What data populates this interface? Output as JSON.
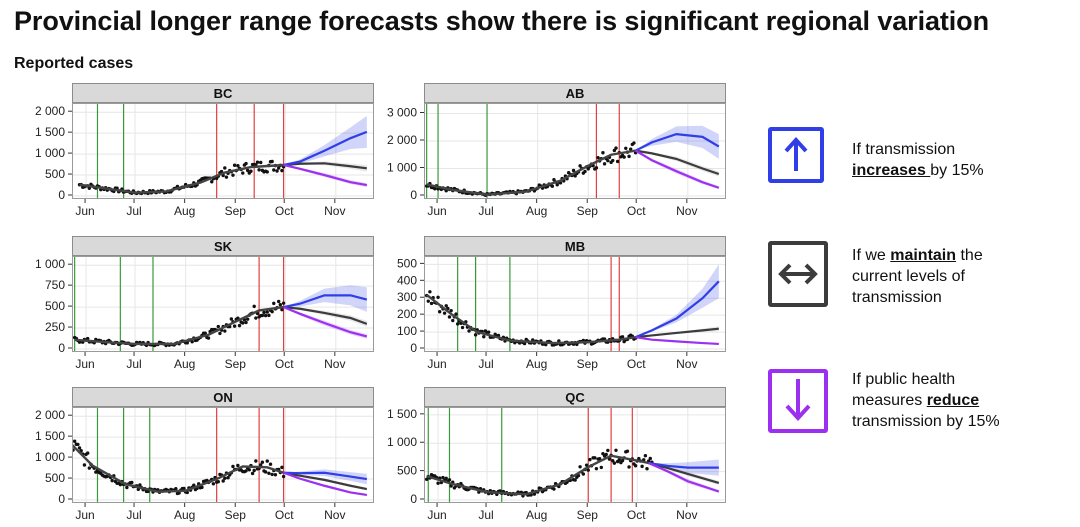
{
  "header": {
    "title": "Provincial longer range forecasts show there is significant regional variation",
    "subtitle": "Reported cases"
  },
  "colors": {
    "increase": "#2f3ee6",
    "maintain": "#3c3c3c",
    "reduce": "#9b30f0",
    "red_line": "#e04040",
    "green_line": "#3a9a3a",
    "strip_bg": "#d9d9d9"
  },
  "legend": {
    "increase": {
      "icon": "up-arrow-icon",
      "pre": "If transmission",
      "bold": "increases ",
      "post": "by 15%"
    },
    "maintain": {
      "icon": "left-right-arrow-icon",
      "pre": "If we ",
      "bold": "maintain",
      "post": " the",
      "line2": "current levels of",
      "line3": "transmission"
    },
    "reduce": {
      "icon": "down-arrow-icon",
      "line1": "If public health",
      "pre": "measures ",
      "bold": "reduce",
      "post": "transmission by 15%"
    }
  },
  "chart_data": [
    {
      "type": "line",
      "province": "BC",
      "x_ticks": [
        "Jun",
        "Jul",
        "Aug",
        "Sep",
        "Oct",
        "Nov"
      ],
      "y_ticks": [
        "0",
        "500",
        "1 000",
        "1 500",
        "2 000"
      ],
      "ylim": [
        0,
        2100
      ],
      "green_lines": [
        "2020-05-01",
        "2020-06-08",
        "2020-06-24"
      ],
      "red_lines": [
        "2020-08-20",
        "2020-09-12",
        "2020-09-30"
      ],
      "fit": [
        [
          "2020-05-28",
          270
        ],
        [
          "2020-06-15",
          170
        ],
        [
          "2020-07-01",
          80
        ],
        [
          "2020-07-20",
          110
        ],
        [
          "2020-08-10",
          320
        ],
        [
          "2020-08-25",
          560
        ],
        [
          "2020-09-10",
          690
        ],
        [
          "2020-09-30",
          740
        ]
      ],
      "forecast": {
        "start": "2020-09-30",
        "increase": [
          [
            "2020-09-30",
            740
          ],
          [
            "2020-10-10",
            820
          ],
          [
            "2020-10-25",
            1080
          ],
          [
            "2020-11-10",
            1380
          ],
          [
            "2020-11-20",
            1530
          ]
        ],
        "maintain": [
          [
            "2020-09-30",
            740
          ],
          [
            "2020-10-10",
            770
          ],
          [
            "2020-10-25",
            780
          ],
          [
            "2020-11-10",
            710
          ],
          [
            "2020-11-20",
            660
          ]
        ],
        "reduce": [
          [
            "2020-09-30",
            740
          ],
          [
            "2020-10-10",
            650
          ],
          [
            "2020-10-25",
            500
          ],
          [
            "2020-11-10",
            330
          ],
          [
            "2020-11-20",
            260
          ]
        ]
      }
    },
    {
      "type": "line",
      "province": "AB",
      "x_ticks": [
        "Jun",
        "Jul",
        "Aug",
        "Sep",
        "Oct",
        "Nov"
      ],
      "y_ticks": [
        "0",
        "1 000",
        "2 000",
        "3 000"
      ],
      "ylim": [
        0,
        3200
      ],
      "green_lines": [
        "2020-05-25",
        "2020-06-01",
        "2020-07-01"
      ],
      "red_lines": [
        "2020-09-06",
        "2020-09-20"
      ],
      "fit": [
        [
          "2020-05-25",
          420
        ],
        [
          "2020-06-10",
          220
        ],
        [
          "2020-07-01",
          50
        ],
        [
          "2020-07-25",
          160
        ],
        [
          "2020-08-15",
          560
        ],
        [
          "2020-09-01",
          1100
        ],
        [
          "2020-09-15",
          1500
        ],
        [
          "2020-09-30",
          1650
        ]
      ],
      "forecast": {
        "start": "2020-09-30",
        "increase": [
          [
            "2020-09-30",
            1650
          ],
          [
            "2020-10-10",
            1950
          ],
          [
            "2020-10-25",
            2250
          ],
          [
            "2020-11-10",
            2150
          ],
          [
            "2020-11-20",
            1800
          ]
        ],
        "maintain": [
          [
            "2020-09-30",
            1650
          ],
          [
            "2020-10-10",
            1550
          ],
          [
            "2020-10-25",
            1350
          ],
          [
            "2020-11-10",
            1000
          ],
          [
            "2020-11-20",
            800
          ]
        ],
        "reduce": [
          [
            "2020-09-30",
            1650
          ],
          [
            "2020-10-10",
            1300
          ],
          [
            "2020-10-25",
            900
          ],
          [
            "2020-11-10",
            500
          ],
          [
            "2020-11-20",
            300
          ]
        ]
      }
    },
    {
      "type": "line",
      "province": "SK",
      "x_ticks": [
        "Jun",
        "Jul",
        "Aug",
        "Sep",
        "Oct",
        "Nov"
      ],
      "y_ticks": [
        "0",
        "250",
        "500",
        "750",
        "1 000"
      ],
      "ylim": [
        0,
        1050
      ],
      "green_lines": [
        "2020-05-25",
        "2020-06-22",
        "2020-07-12"
      ],
      "red_lines": [
        "2020-09-15",
        "2020-09-30"
      ],
      "fit": [
        [
          "2020-05-25",
          110
        ],
        [
          "2020-06-15",
          80
        ],
        [
          "2020-07-01",
          60
        ],
        [
          "2020-07-25",
          60
        ],
        [
          "2020-08-15",
          170
        ],
        [
          "2020-09-01",
          330
        ],
        [
          "2020-09-15",
          460
        ],
        [
          "2020-09-30",
          500
        ]
      ],
      "forecast": {
        "start": "2020-09-30",
        "increase": [
          [
            "2020-09-30",
            500
          ],
          [
            "2020-10-10",
            540
          ],
          [
            "2020-10-25",
            640
          ],
          [
            "2020-11-10",
            640
          ],
          [
            "2020-11-20",
            590
          ]
        ],
        "maintain": [
          [
            "2020-09-30",
            500
          ],
          [
            "2020-10-10",
            480
          ],
          [
            "2020-10-25",
            430
          ],
          [
            "2020-11-10",
            370
          ],
          [
            "2020-11-20",
            300
          ]
        ],
        "reduce": [
          [
            "2020-09-30",
            500
          ],
          [
            "2020-10-10",
            420
          ],
          [
            "2020-10-25",
            310
          ],
          [
            "2020-11-10",
            200
          ],
          [
            "2020-11-20",
            150
          ]
        ]
      }
    },
    {
      "type": "line",
      "province": "MB",
      "x_ticks": [
        "Jun",
        "Jul",
        "Aug",
        "Sep",
        "Oct",
        "Nov"
      ],
      "y_ticks": [
        "0",
        "100",
        "200",
        "300",
        "400",
        "500"
      ],
      "ylim": [
        0,
        520
      ],
      "green_lines": [
        "2020-06-13",
        "2020-06-24",
        "2020-07-15"
      ],
      "red_lines": [
        "2020-09-15",
        "2020-09-20"
      ],
      "fit": [
        [
          "2020-05-25",
          320
        ],
        [
          "2020-06-10",
          200
        ],
        [
          "2020-06-25",
          100
        ],
        [
          "2020-07-15",
          50
        ],
        [
          "2020-08-10",
          35
        ],
        [
          "2020-09-01",
          40
        ],
        [
          "2020-09-20",
          55
        ],
        [
          "2020-09-30",
          70
        ]
      ],
      "forecast": {
        "start": "2020-09-30",
        "increase": [
          [
            "2020-09-30",
            70
          ],
          [
            "2020-10-10",
            110
          ],
          [
            "2020-10-25",
            180
          ],
          [
            "2020-11-10",
            300
          ],
          [
            "2020-11-20",
            400
          ]
        ],
        "maintain": [
          [
            "2020-09-30",
            70
          ],
          [
            "2020-10-10",
            80
          ],
          [
            "2020-10-25",
            95
          ],
          [
            "2020-11-10",
            110
          ],
          [
            "2020-11-20",
            120
          ]
        ],
        "reduce": [
          [
            "2020-09-30",
            70
          ],
          [
            "2020-10-10",
            55
          ],
          [
            "2020-10-25",
            45
          ],
          [
            "2020-11-10",
            35
          ],
          [
            "2020-11-20",
            30
          ]
        ]
      }
    },
    {
      "type": "line",
      "province": "ON",
      "x_ticks": [
        "Jun",
        "Jul",
        "Aug",
        "Sep",
        "Oct",
        "Nov"
      ],
      "y_ticks": [
        "0",
        "500",
        "1 000",
        "1 500",
        "2 000"
      ],
      "ylim": [
        0,
        2100
      ],
      "green_lines": [
        "2020-06-08",
        "2020-06-24",
        "2020-07-10"
      ],
      "red_lines": [
        "2020-08-20",
        "2020-09-15",
        "2020-09-30"
      ],
      "fit": [
        [
          "2020-05-20",
          1450
        ],
        [
          "2020-06-05",
          820
        ],
        [
          "2020-06-25",
          380
        ],
        [
          "2020-07-15",
          200
        ],
        [
          "2020-08-01",
          220
        ],
        [
          "2020-08-20",
          500
        ],
        [
          "2020-09-05",
          800
        ],
        [
          "2020-09-20",
          780
        ],
        [
          "2020-09-30",
          650
        ]
      ],
      "forecast": {
        "start": "2020-09-30",
        "increase": [
          [
            "2020-09-30",
            650
          ],
          [
            "2020-10-10",
            640
          ],
          [
            "2020-10-25",
            650
          ],
          [
            "2020-11-10",
            560
          ],
          [
            "2020-11-20",
            500
          ]
        ],
        "maintain": [
          [
            "2020-09-30",
            650
          ],
          [
            "2020-10-10",
            580
          ],
          [
            "2020-10-25",
            480
          ],
          [
            "2020-11-10",
            340
          ],
          [
            "2020-11-20",
            260
          ]
        ],
        "reduce": [
          [
            "2020-09-30",
            650
          ],
          [
            "2020-10-10",
            510
          ],
          [
            "2020-10-25",
            340
          ],
          [
            "2020-11-10",
            180
          ],
          [
            "2020-11-20",
            120
          ]
        ]
      }
    },
    {
      "type": "line",
      "province": "QC",
      "x_ticks": [
        "Jun",
        "Jul",
        "Aug",
        "Sep",
        "Oct",
        "Nov"
      ],
      "y_ticks": [
        "0",
        "500",
        "1 000",
        "1 500"
      ],
      "ylim": [
        0,
        1550
      ],
      "green_lines": [
        "2020-05-26",
        "2020-06-08",
        "2020-07-10"
      ],
      "red_lines": [
        "2020-09-01",
        "2020-09-15",
        "2020-09-28"
      ],
      "fit": [
        [
          "2020-05-25",
          420
        ],
        [
          "2020-06-10",
          280
        ],
        [
          "2020-07-01",
          140
        ],
        [
          "2020-07-25",
          100
        ],
        [
          "2020-08-15",
          280
        ],
        [
          "2020-09-01",
          580
        ],
        [
          "2020-09-15",
          780
        ],
        [
          "2020-09-30",
          700
        ],
        [
          "2020-10-10",
          640
        ]
      ],
      "forecast": {
        "start": "2020-10-08",
        "increase": [
          [
            "2020-10-08",
            650
          ],
          [
            "2020-10-20",
            600
          ],
          [
            "2020-11-01",
            570
          ],
          [
            "2020-11-20",
            570
          ]
        ],
        "maintain": [
          [
            "2020-10-08",
            650
          ],
          [
            "2020-10-20",
            560
          ],
          [
            "2020-11-01",
            460
          ],
          [
            "2020-11-20",
            300
          ]
        ],
        "reduce": [
          [
            "2020-10-08",
            650
          ],
          [
            "2020-10-20",
            500
          ],
          [
            "2020-11-01",
            330
          ],
          [
            "2020-11-20",
            150
          ]
        ]
      }
    }
  ]
}
